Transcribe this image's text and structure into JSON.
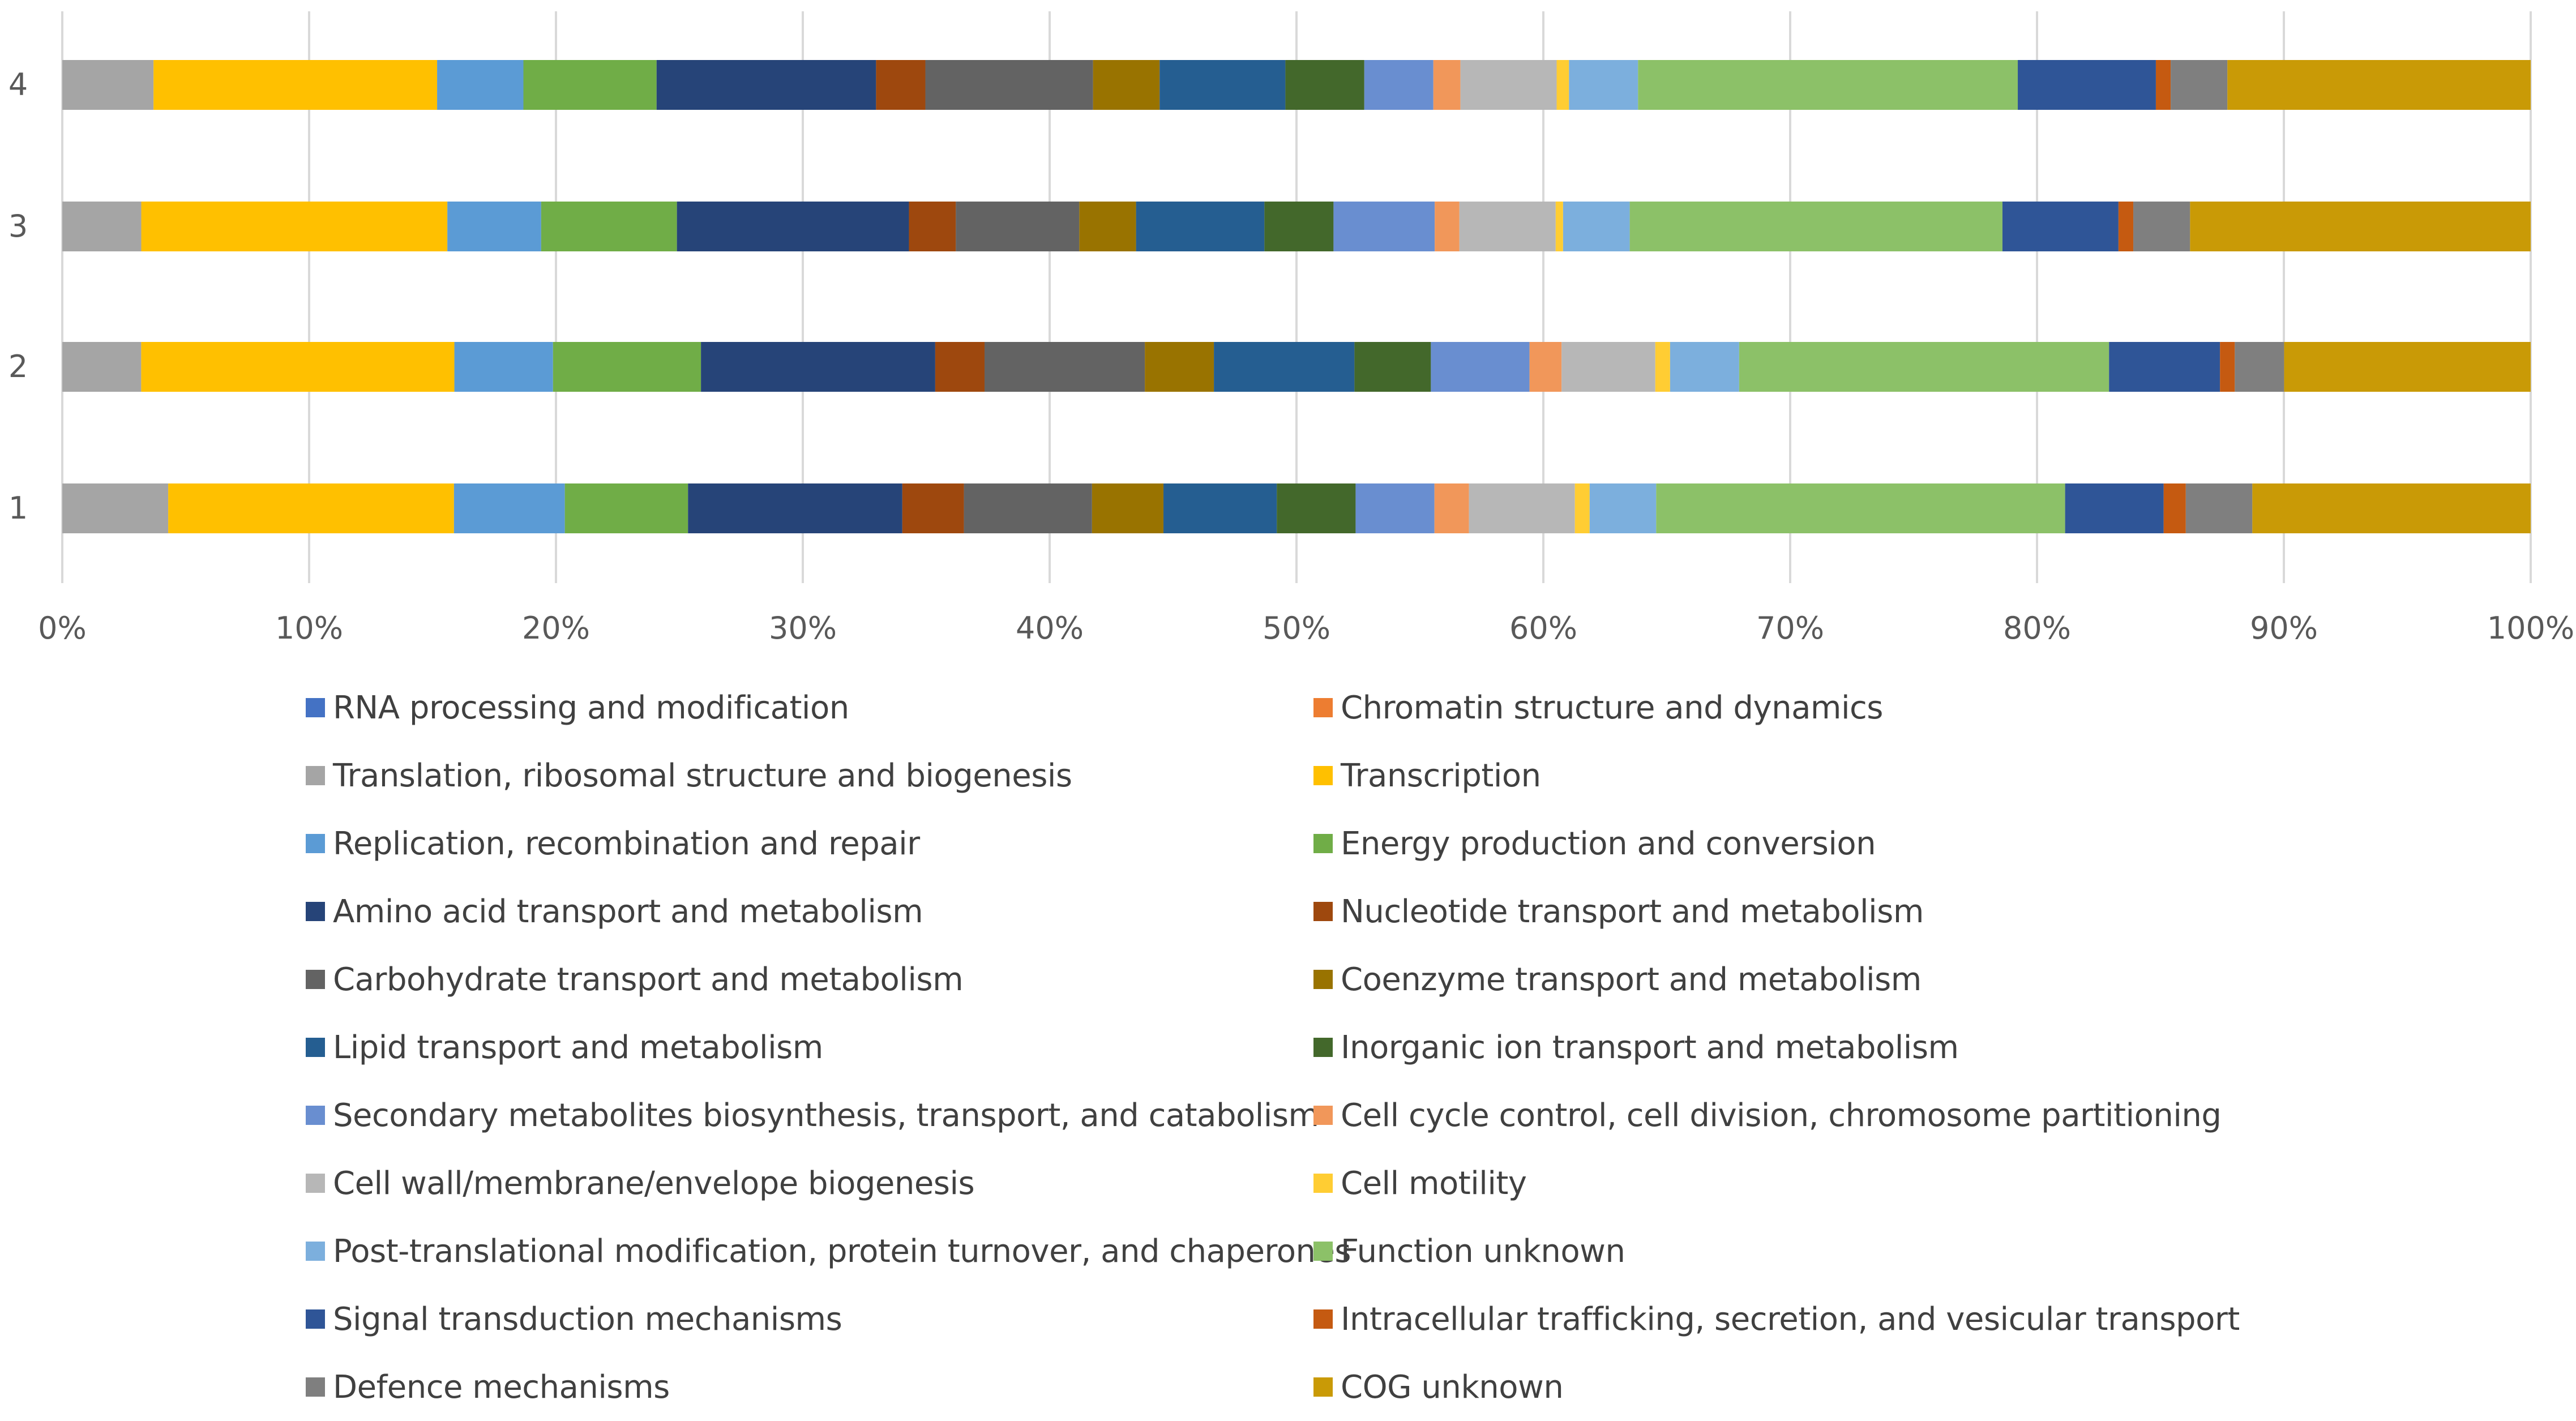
{
  "chart_data": {
    "type": "bar",
    "orientation": "horizontal",
    "stacked": true,
    "percent": true,
    "title": "",
    "xlabel": "",
    "ylabel": "",
    "xlim": [
      0,
      100
    ],
    "x_ticks": [
      "0%",
      "10%",
      "20%",
      "30%",
      "40%",
      "50%",
      "60%",
      "70%",
      "80%",
      "90%",
      "100%"
    ],
    "categories": [
      "1",
      "2",
      "3",
      "4"
    ],
    "legend_position": "bottom",
    "series": [
      {
        "name": "Translation, ribosomal structure and biogenesis",
        "color": "#A5A5A5",
        "values": [
          4.3,
          3.2,
          3.2,
          3.7
        ]
      },
      {
        "name": "Transcription",
        "color": "#FFC000",
        "values": [
          11.6,
          12.7,
          12.4,
          11.5
        ]
      },
      {
        "name": "Replication, recombination and repair",
        "color": "#5B9BD5",
        "values": [
          4.5,
          4.0,
          3.8,
          3.5
        ]
      },
      {
        "name": "Energy production and conversion",
        "color": "#70AD47",
        "values": [
          5.0,
          6.0,
          5.5,
          5.4
        ]
      },
      {
        "name": "Amino acid transport and metabolism",
        "color": "#264478",
        "values": [
          8.7,
          9.5,
          9.4,
          8.9
        ]
      },
      {
        "name": "Nucleotide transport and metabolism",
        "color": "#9E480E",
        "values": [
          2.5,
          2.0,
          1.9,
          2.0
        ]
      },
      {
        "name": "Carbohydrate transport and metabolism",
        "color": "#636363",
        "values": [
          5.2,
          6.5,
          5.0,
          6.8
        ]
      },
      {
        "name": "Coenzyme transport and metabolism",
        "color": "#997300",
        "values": [
          2.9,
          2.8,
          2.3,
          2.7
        ]
      },
      {
        "name": "Lipid transport and metabolism",
        "color": "#255E91",
        "values": [
          4.6,
          5.7,
          5.2,
          5.1
        ]
      },
      {
        "name": "Inorganic ion transport and metabolism",
        "color": "#43682B",
        "values": [
          3.2,
          3.1,
          2.8,
          3.2
        ]
      },
      {
        "name": "Secondary metabolites biosynthesis, transport, and catabolism",
        "color": "#698ED0",
        "values": [
          3.2,
          4.0,
          4.1,
          2.8
        ]
      },
      {
        "name": "Cell cycle control, cell division, chromosome partitioning",
        "color": "#F1975A",
        "values": [
          1.4,
          1.3,
          1.0,
          1.1
        ]
      },
      {
        "name": "Cell wall/membrane/envelope biogenesis",
        "color": "#B7B7B7",
        "values": [
          4.3,
          3.8,
          3.9,
          3.9
        ]
      },
      {
        "name": "Cell motility",
        "color": "#FFCD33",
        "values": [
          0.6,
          0.6,
          0.3,
          0.5
        ]
      },
      {
        "name": "Post-translational modification, protein turnover, and chaperones",
        "color": "#7CAFDD",
        "values": [
          2.7,
          2.8,
          2.7,
          2.8
        ]
      },
      {
        "name": "Function unknown",
        "color": "#8CC168",
        "values": [
          16.6,
          15.0,
          15.1,
          15.4
        ]
      },
      {
        "name": "Signal transduction mechanisms",
        "color": "#2F5597",
        "values": [
          4.0,
          4.5,
          4.7,
          5.6
        ]
      },
      {
        "name": "Intracellular trafficking, secretion, and vesicular transport",
        "color": "#C55A11",
        "values": [
          0.9,
          0.6,
          0.6,
          0.6
        ]
      },
      {
        "name": "Defence mechanisms",
        "color": "#7F7F7F",
        "values": [
          2.7,
          2.0,
          2.3,
          2.3
        ]
      },
      {
        "name": "COG unknown",
        "color": "#C99A06",
        "values": [
          11.3,
          10.0,
          13.8,
          12.3
        ]
      }
    ],
    "legend_order": [
      {
        "name": "RNA processing and modification",
        "color": "#4472C4"
      },
      {
        "name": "Chromatin structure and dynamics",
        "color": "#ED7D31"
      },
      {
        "name": "Translation, ribosomal structure and biogenesis",
        "color": "#A5A5A5"
      },
      {
        "name": "Transcription",
        "color": "#FFC000"
      },
      {
        "name": "Replication, recombination and repair",
        "color": "#5B9BD5"
      },
      {
        "name": "Energy production and conversion",
        "color": "#70AD47"
      },
      {
        "name": "Amino acid transport and metabolism",
        "color": "#264478"
      },
      {
        "name": "Nucleotide transport and metabolism",
        "color": "#9E480E"
      },
      {
        "name": "Carbohydrate transport and metabolism",
        "color": "#636363"
      },
      {
        "name": "Coenzyme transport and metabolism",
        "color": "#997300"
      },
      {
        "name": "Lipid transport and metabolism",
        "color": "#255E91"
      },
      {
        "name": "Inorganic ion transport and metabolism",
        "color": "#43682B"
      },
      {
        "name": "Secondary metabolites biosynthesis, transport, and catabolism",
        "color": "#698ED0"
      },
      {
        "name": "Cell cycle control, cell division, chromosome partitioning",
        "color": "#F1975A"
      },
      {
        "name": "Cell wall/membrane/envelope biogenesis",
        "color": "#B7B7B7"
      },
      {
        "name": "Cell motility",
        "color": "#FFCD33"
      },
      {
        "name": "Post-translational modification, protein turnover, and chaperones",
        "color": "#7CAFDD"
      },
      {
        "name": "Function unknown",
        "color": "#8CC168"
      },
      {
        "name": "Signal transduction mechanisms",
        "color": "#2F5597"
      },
      {
        "name": "Intracellular trafficking, secretion, and vesicular transport",
        "color": "#C55A11"
      },
      {
        "name": "Defence mechanisms",
        "color": "#7F7F7F"
      },
      {
        "name": "COG unknown",
        "color": "#C99A06"
      }
    ]
  }
}
